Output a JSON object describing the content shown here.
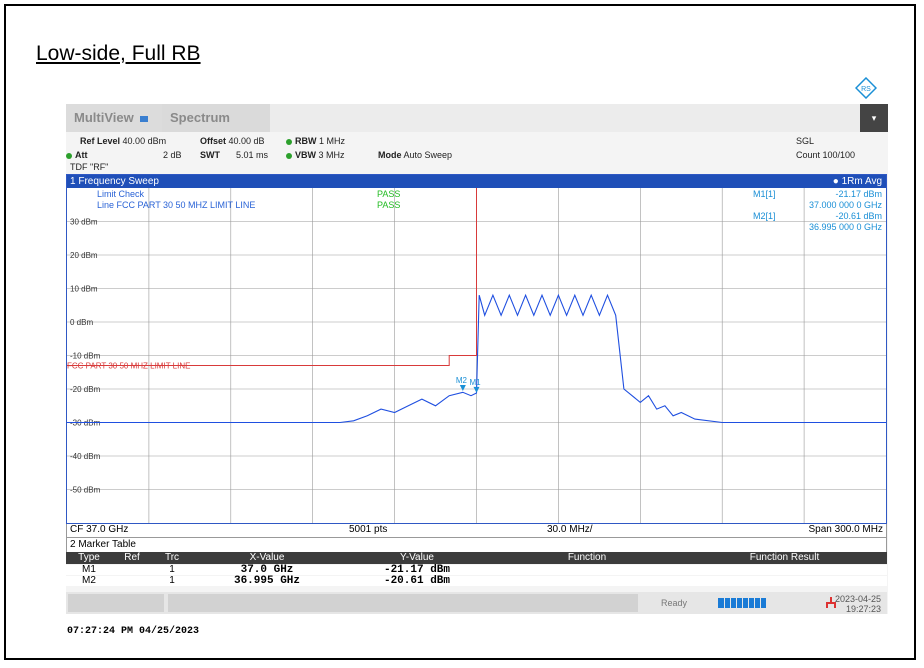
{
  "page_title": "Low-side, Full RB",
  "tabs": {
    "multiview": "MultiView",
    "spectrum": "Spectrum"
  },
  "header": {
    "ref_level_label": "Ref Level",
    "ref_level_value": "40.00 dBm",
    "offset_label": "Offset",
    "offset_value": "40.00 dB",
    "rbw_label": "RBW",
    "rbw_value": "1 MHz",
    "att_label": "Att",
    "att_value": "2 dB",
    "swt_label": "SWT",
    "swt_value": "5.01 ms",
    "vbw_label": "VBW",
    "vbw_value": "3 MHz",
    "mode_label": "Mode",
    "mode_value": "Auto Sweep",
    "tdf": "TDF \"RF\"",
    "sgl": "SGL",
    "count": "Count 100/100"
  },
  "window": {
    "title": "1 Frequency Sweep",
    "trace_label": "1Rm Avg",
    "limit_check_label": "Limit Check",
    "limit_check_result": "PASS",
    "limit_line_label": "Line FCC PART 30 50 MHZ LIMIT LINE",
    "limit_line_result": "PASS",
    "limit_line_tag": "FCC PART 30 50 MHZ LIMIT LINE",
    "markers": [
      {
        "name": "M1[1]",
        "level": "-21.17 dBm",
        "freq": "37.000 000 0 GHz"
      },
      {
        "name": "M2[1]",
        "level": "-20.61 dBm",
        "freq": "36.995 000 0 GHz"
      }
    ],
    "marker_flags": {
      "m1": "M1",
      "m2": "M2"
    }
  },
  "axis_footer": {
    "cf": "CF 37.0 GHz",
    "pts": "5001 pts",
    "div": "30.0 MHz/",
    "span": "Span 300.0 MHz"
  },
  "marker_table": {
    "title": "2 Marker Table",
    "headers": [
      "Type",
      "Ref",
      "Trc",
      "X-Value",
      "Y-Value",
      "Function",
      "Function Result"
    ],
    "rows": [
      {
        "type": "M1",
        "ref": "",
        "trc": "1",
        "x": "37.0 GHz",
        "y": "-21.17 dBm"
      },
      {
        "type": "M2",
        "ref": "",
        "trc": "1",
        "x": "36.995 GHz",
        "y": "-20.61 dBm"
      }
    ]
  },
  "status": {
    "ready": "Ready",
    "date": "2023-04-25",
    "time": "19:27:23"
  },
  "footer_timestamp": "07:27:24 PM  04/25/2023",
  "colors": {
    "trace": "#1f4fe0",
    "limit": "#d83a3a",
    "pass": "#22bb22",
    "title_bar": "#1f4fb8",
    "marker_text": "#1a8fd6"
  },
  "chart_data": {
    "type": "line",
    "x_unit": "GHz",
    "y_unit": "dBm",
    "xlim": [
      36.85,
      37.15
    ],
    "ylim": [
      -60,
      40
    ],
    "y_ticks": [
      30,
      20,
      10,
      0,
      -10,
      -20,
      -30,
      -40,
      -50
    ],
    "y_tick_labels": [
      "30 dBm",
      "20 dBm",
      "10 dBm",
      "0 dBm",
      "-10 dBm",
      "-20 dBm",
      "-30 dBm",
      "-40 dBm",
      "-50 dBm"
    ],
    "grid": true,
    "series": [
      {
        "x": [
          36.85,
          36.87,
          36.89,
          36.91,
          36.93,
          36.95,
          36.955,
          36.96,
          36.965,
          36.97,
          36.975,
          36.98,
          36.985,
          36.99,
          36.995,
          36.998,
          37.0,
          37.001,
          37.003,
          37.006,
          37.009,
          37.012,
          37.015,
          37.018,
          37.021,
          37.024,
          37.027,
          37.03,
          37.033,
          37.036,
          37.039,
          37.042,
          37.045,
          37.048,
          37.051,
          37.054,
          37.057,
          37.06,
          37.063,
          37.066,
          37.069,
          37.072,
          37.075,
          37.08,
          37.09,
          37.1,
          37.12,
          37.15
        ],
        "y": [
          -30,
          -30,
          -30,
          -30,
          -30,
          -30,
          -29.5,
          -28,
          -26,
          -27,
          -25,
          -23,
          -25,
          -22,
          -21,
          -22,
          -21.2,
          8,
          2,
          8,
          2,
          8,
          2,
          8,
          2,
          8,
          2,
          8,
          2,
          8,
          2,
          8,
          2,
          8,
          2,
          -20,
          -22,
          -24,
          -22,
          -26,
          -25,
          -28,
          -27,
          -29,
          -30,
          -30,
          -30,
          -30
        ]
      }
    ],
    "limit_line": {
      "x": [
        36.85,
        36.99,
        36.99,
        37.0,
        37.0
      ],
      "y": [
        -13,
        -13,
        -10,
        -10,
        40
      ]
    },
    "markers": [
      {
        "name": "M1",
        "x": 37.0,
        "y": -21.17
      },
      {
        "name": "M2",
        "x": 36.995,
        "y": -20.61
      }
    ]
  }
}
